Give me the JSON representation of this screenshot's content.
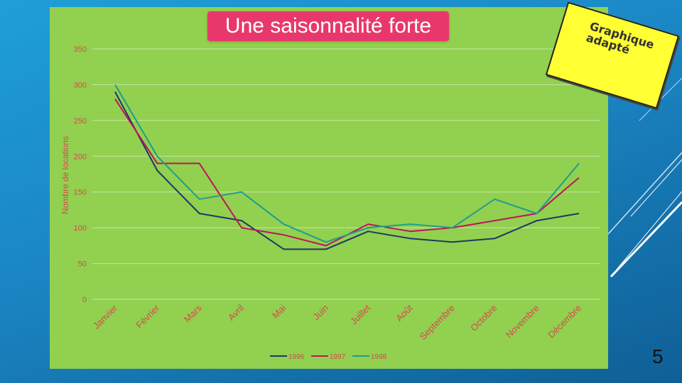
{
  "slide": {
    "title": "Une saisonnalité forte",
    "note_line1": "Graphique",
    "note_line2": "adapté",
    "page_number": "5"
  },
  "colors": {
    "panel": "#92d050",
    "title_bg": "#e8386b",
    "note_bg": "#ffff33",
    "series_1996": "#1f3864",
    "series_1997": "#c0145a",
    "series_1998": "#1e9e8a",
    "axis_text": "#d44b4b"
  },
  "chart_data": {
    "type": "line",
    "title": "",
    "xlabel": "",
    "ylabel": "Nombre de locations",
    "ylim": [
      0,
      350
    ],
    "yticks": [
      0,
      50,
      100,
      150,
      200,
      250,
      300,
      350
    ],
    "grid": true,
    "legend_position": "bottom",
    "categories": [
      "Janvier",
      "Février",
      "Mars",
      "Avril",
      "Mai",
      "Juin",
      "Juillet",
      "Août",
      "Septembre",
      "Octobre",
      "Novembre",
      "Décembre"
    ],
    "series": [
      {
        "name": "1996",
        "color": "#1f3864",
        "values": [
          290,
          180,
          120,
          110,
          70,
          70,
          95,
          85,
          80,
          85,
          110,
          120
        ]
      },
      {
        "name": "1997",
        "color": "#c0145a",
        "values": [
          280,
          190,
          190,
          100,
          90,
          75,
          105,
          95,
          100,
          110,
          120,
          170
        ]
      },
      {
        "name": "1998",
        "color": "#1e9e8a",
        "values": [
          300,
          200,
          140,
          150,
          105,
          80,
          100,
          105,
          100,
          140,
          120,
          190
        ]
      }
    ]
  }
}
